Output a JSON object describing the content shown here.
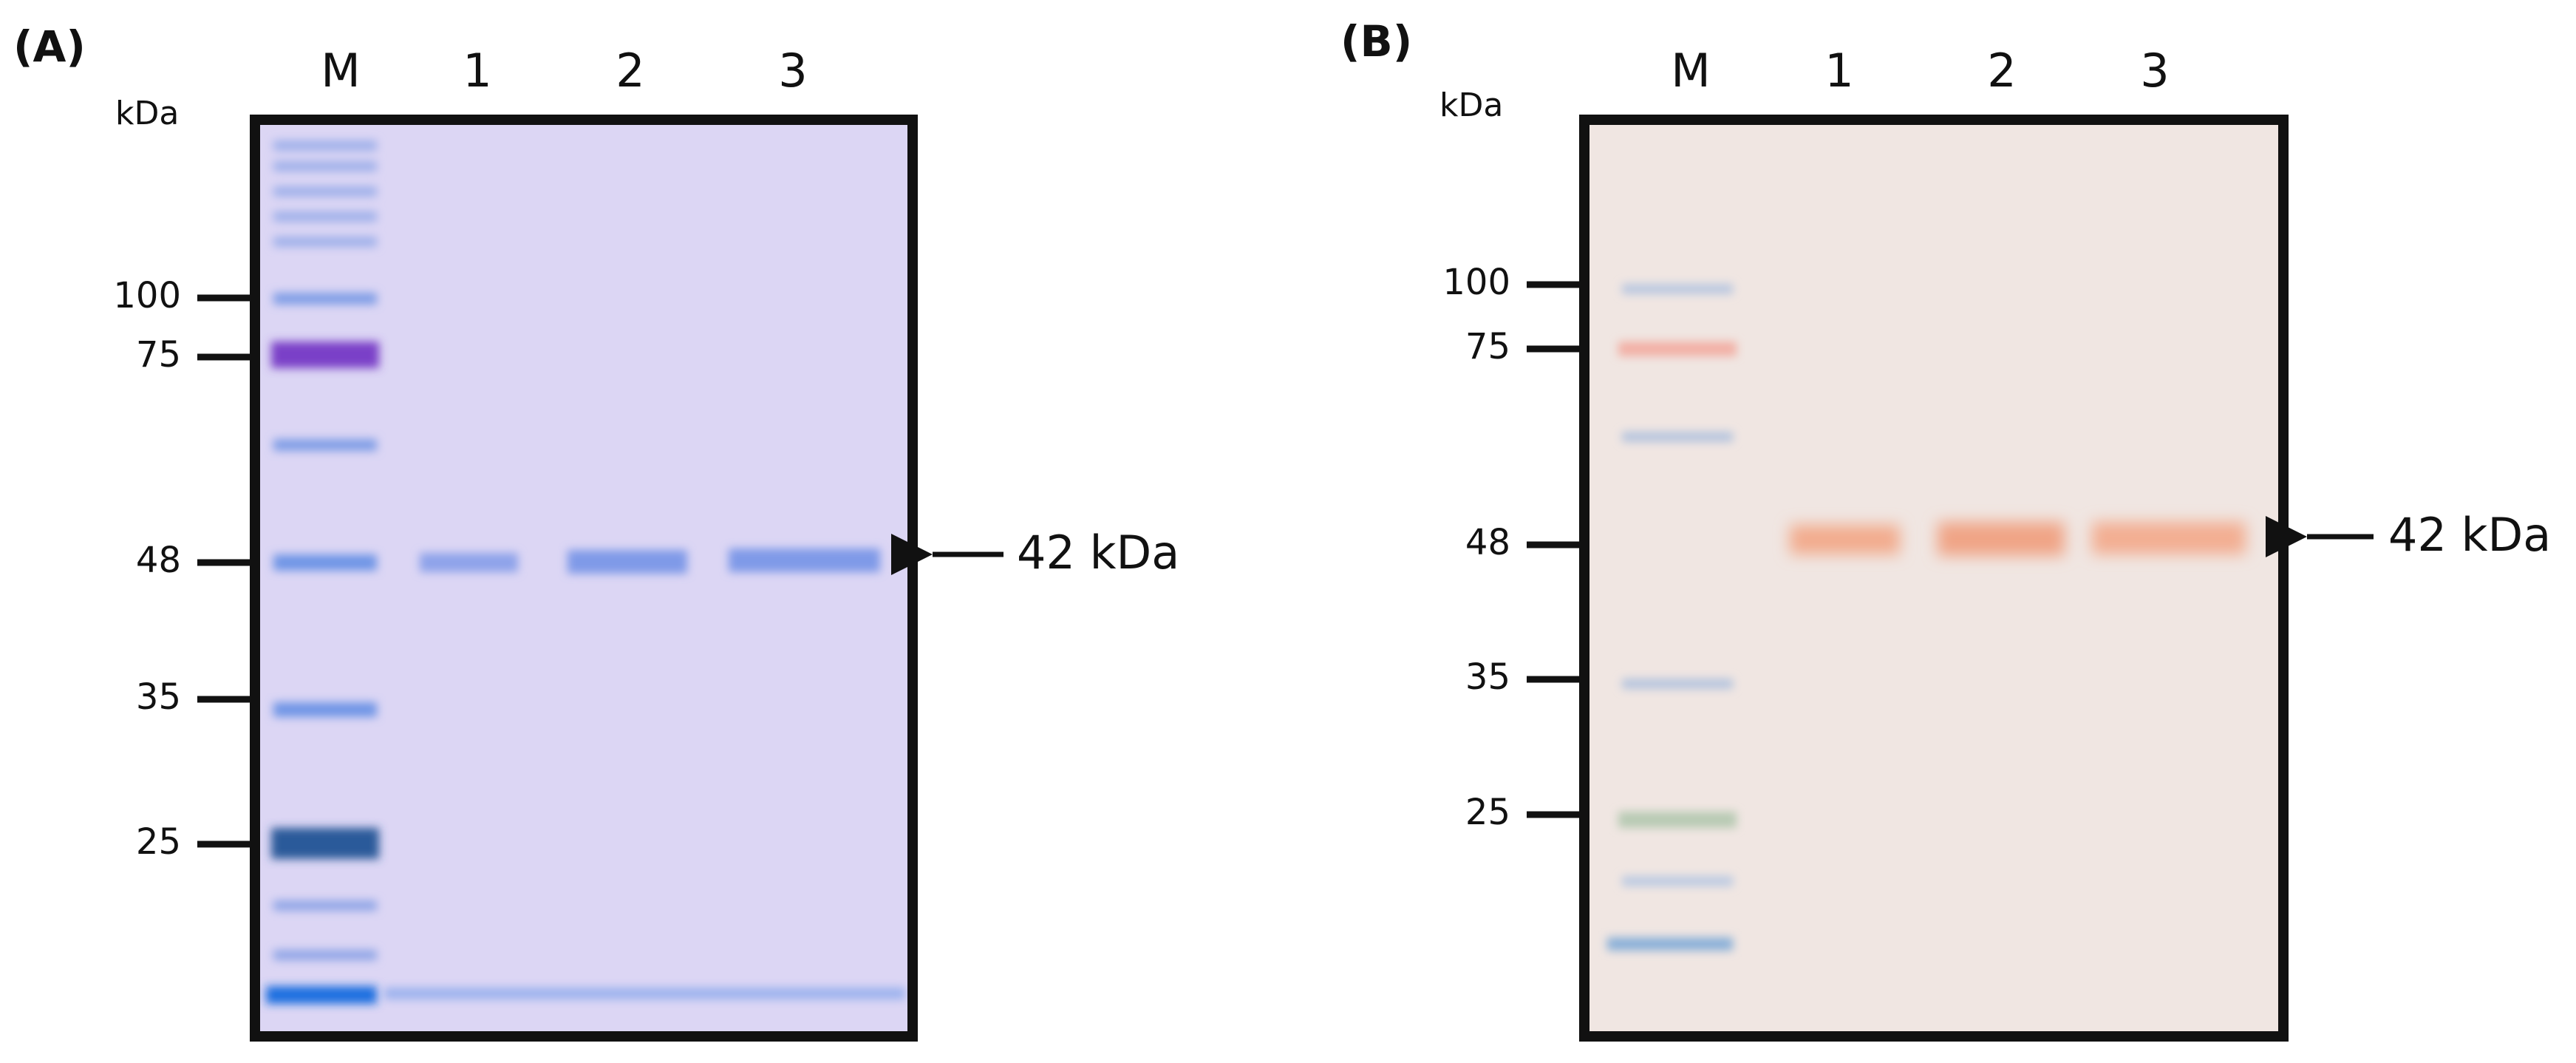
{
  "panels": [
    {
      "label": "(A)",
      "unit": "kDa",
      "lanes": [
        "M",
        "1",
        "2",
        "3"
      ],
      "markers": [
        "100",
        "75",
        "48",
        "35",
        "25"
      ],
      "annotation": "42 kDa"
    },
    {
      "label": "(B)",
      "unit": "kDa",
      "lanes": [
        "M",
        "1",
        "2",
        "3"
      ],
      "markers": [
        "100",
        "75",
        "48",
        "35",
        "25"
      ],
      "annotation": "42 kDa"
    }
  ]
}
